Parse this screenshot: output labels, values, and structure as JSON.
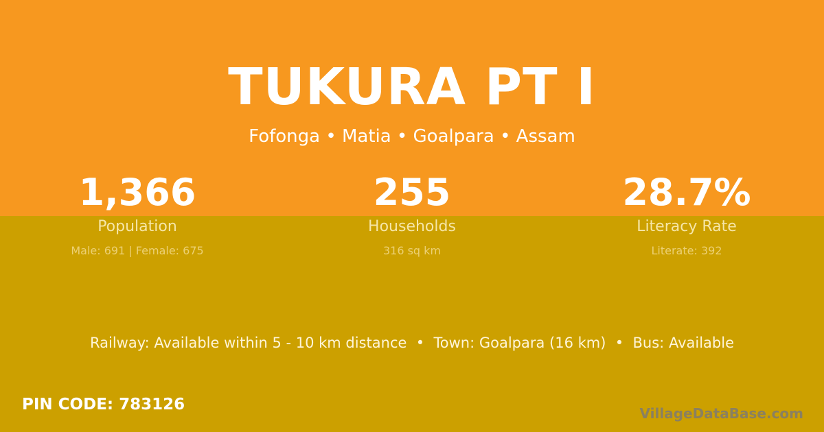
{
  "title": "TUKURA PT I",
  "location": "Fofonga • Matia • Goalpara • Assam",
  "stats": [
    {
      "value": "1,366",
      "label": "Population",
      "sub": "Male: 691 | Female: 675"
    },
    {
      "value": "255",
      "label": "Households",
      "sub": "316 sq km"
    },
    {
      "value": "28.7%",
      "label": "Literacy Rate",
      "sub": "Literate: 392"
    }
  ],
  "facts": "Railway: Available within 5 - 10 km distance  •  Town: Goalpara (16 km)  •  Bus: Available",
  "pin": "PIN CODE: 783126",
  "brand": "VillageDataBase.com",
  "colors": {
    "top": "#f7981f",
    "bottom": "#cca000"
  }
}
